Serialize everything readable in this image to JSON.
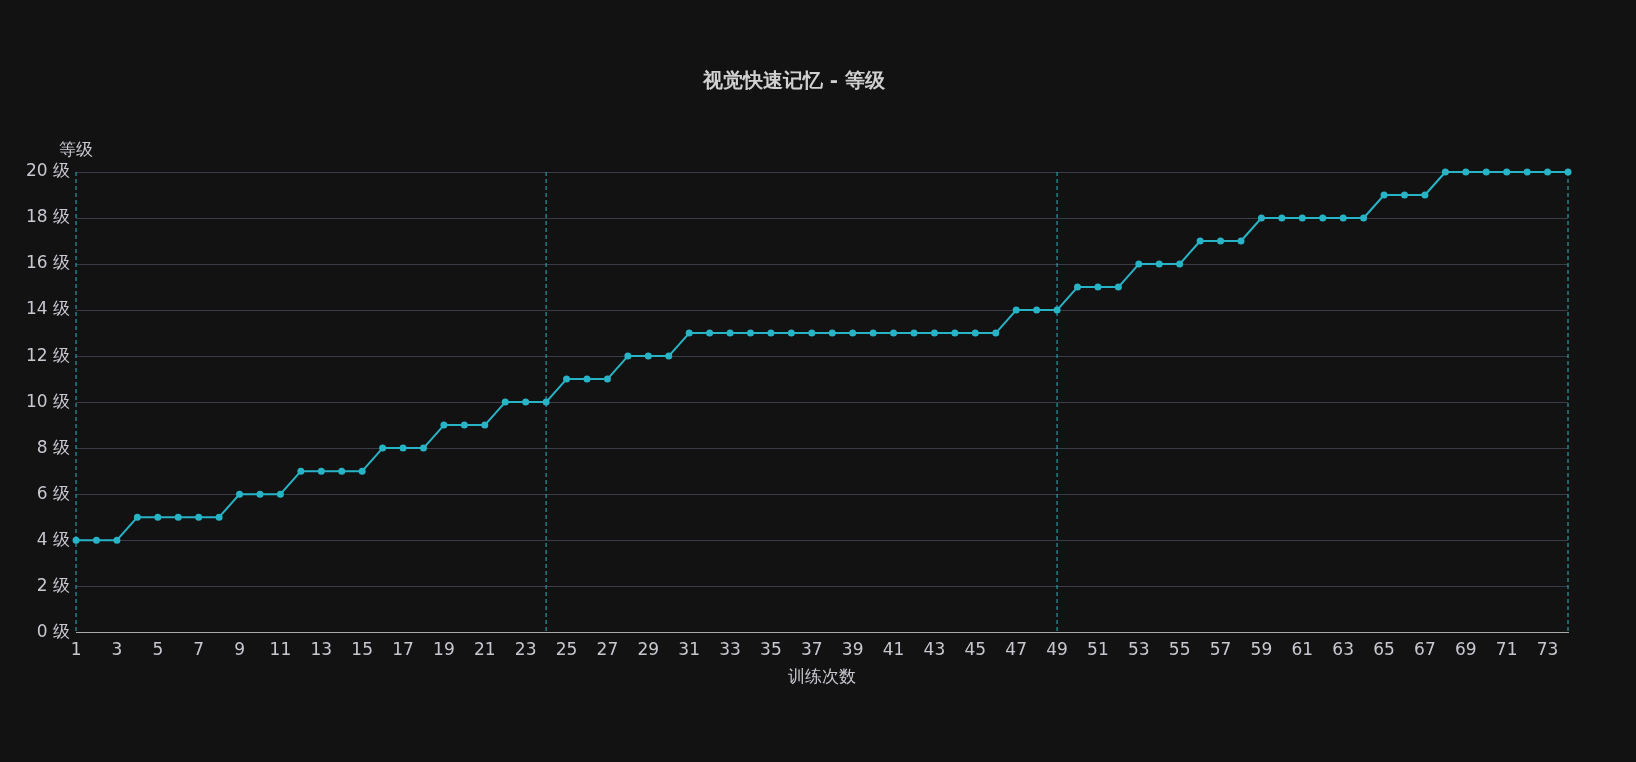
{
  "chart_data": {
    "type": "line",
    "title": "视觉快速记忆 - 等级",
    "xlabel": "训练次数",
    "ylabel": "等级",
    "x": [
      1,
      2,
      3,
      4,
      5,
      6,
      7,
      8,
      9,
      10,
      11,
      12,
      13,
      14,
      15,
      16,
      17,
      18,
      19,
      20,
      21,
      22,
      23,
      24,
      25,
      26,
      27,
      28,
      29,
      30,
      31,
      32,
      33,
      34,
      35,
      36,
      37,
      38,
      39,
      40,
      41,
      42,
      43,
      44,
      45,
      46,
      47,
      48,
      49,
      50,
      51,
      52,
      53,
      54,
      55,
      56,
      57,
      58,
      59,
      60,
      61,
      62,
      63,
      64,
      65,
      66,
      67,
      68,
      69,
      70,
      71,
      72,
      73,
      74
    ],
    "series": [
      {
        "color": "#27b4c6",
        "values": [
          4,
          4,
          4,
          5,
          5,
          5,
          5,
          5,
          6,
          6,
          6,
          7,
          7,
          7,
          7,
          8,
          8,
          8,
          9,
          9,
          9,
          10,
          10,
          10,
          11,
          11,
          11,
          12,
          12,
          12,
          13,
          13,
          13,
          13,
          13,
          13,
          13,
          13,
          13,
          13,
          13,
          13,
          13,
          13,
          13,
          13,
          14,
          14,
          14,
          15,
          15,
          15,
          16,
          16,
          16,
          17,
          17,
          17,
          18,
          18,
          18,
          18,
          18,
          18,
          19,
          19,
          19,
          20,
          20,
          20,
          20,
          20,
          20,
          20
        ]
      }
    ],
    "xlim": [
      1,
      74
    ],
    "xticks": [
      1,
      3,
      5,
      7,
      9,
      11,
      13,
      15,
      17,
      19,
      21,
      23,
      25,
      27,
      29,
      31,
      33,
      35,
      37,
      39,
      41,
      43,
      45,
      47,
      49,
      51,
      53,
      55,
      57,
      59,
      61,
      63,
      65,
      67,
      69,
      71,
      73
    ],
    "ylim": [
      0,
      20
    ],
    "yticks": [
      {
        "value": 0,
        "label": "0 级"
      },
      {
        "value": 2,
        "label": "2 级"
      },
      {
        "value": 4,
        "label": "4 级"
      },
      {
        "value": 6,
        "label": "6 级"
      },
      {
        "value": 8,
        "label": "8 级"
      },
      {
        "value": 10,
        "label": "10 级"
      },
      {
        "value": 12,
        "label": "12 级"
      },
      {
        "value": 14,
        "label": "14 级"
      },
      {
        "value": 16,
        "label": "16 级"
      },
      {
        "value": 18,
        "label": "18 级"
      },
      {
        "value": 20,
        "label": "20 级"
      }
    ],
    "ref_lines": [
      {
        "axis": "x",
        "value": 1,
        "color": "#27b4c6",
        "line_style": "dashed"
      },
      {
        "axis": "x",
        "value": 24,
        "color": "#27b4c6",
        "line_style": "dashed"
      },
      {
        "axis": "x",
        "value": 49,
        "color": "#27b4c6",
        "line_style": "dashed"
      },
      {
        "axis": "x",
        "value": 74,
        "color": "#27b4c6",
        "line_style": "dashed"
      }
    ],
    "grid": "y",
    "legend": false,
    "marker": "circle",
    "line_style": "solid"
  }
}
